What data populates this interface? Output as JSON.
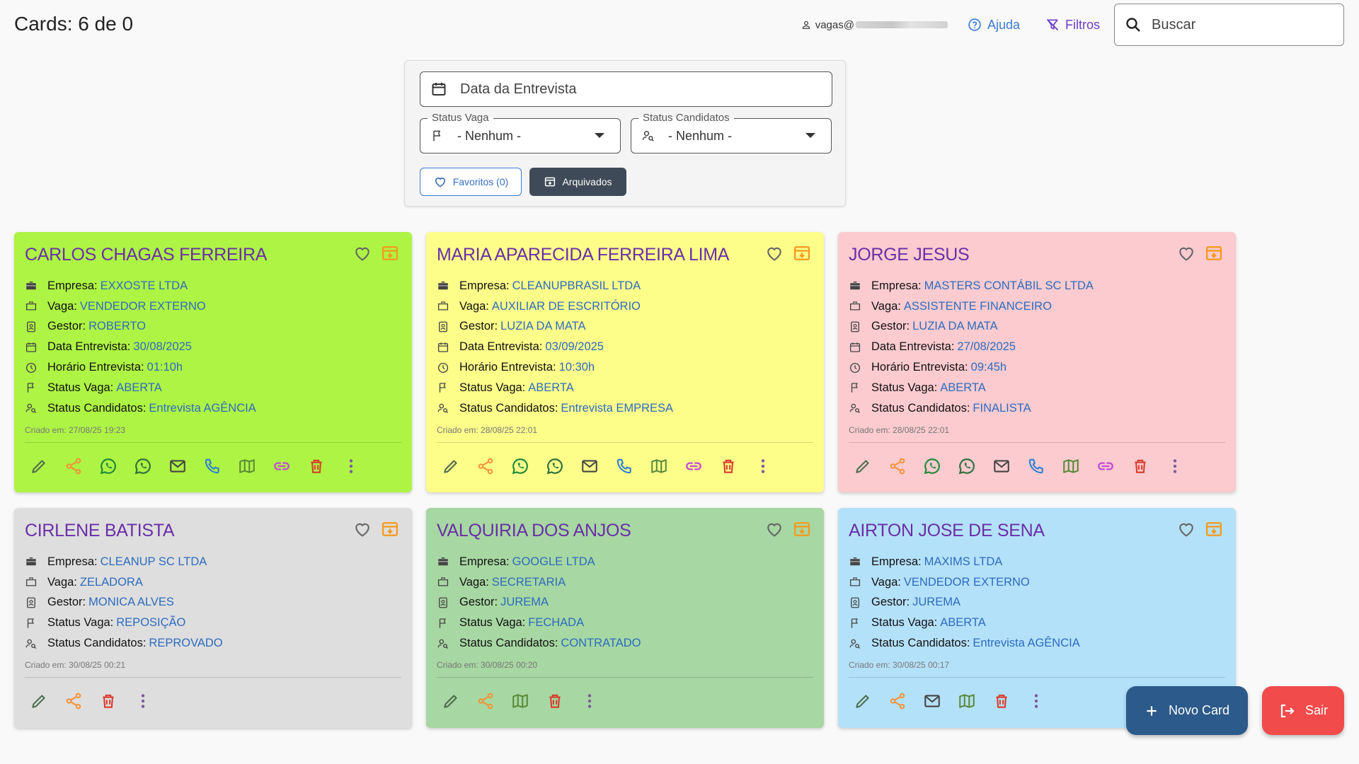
{
  "header": {
    "title": "Cards: 6 de 0",
    "user_email": "vagas@",
    "help_label": "Ajuda",
    "filters_label": "Filtros",
    "search_placeholder": "Buscar"
  },
  "filters": {
    "date_placeholder": "Data da Entrevista",
    "status_vaga": {
      "label": "Status Vaga",
      "value": "- Nenhum -"
    },
    "status_candidatos": {
      "label": "Status Candidatos",
      "value": "- Nenhum -"
    },
    "favorites_label": "Favoritos (0)",
    "archived_label": "Arquivados"
  },
  "labels": {
    "empresa": "Empresa:",
    "vaga": "Vaga:",
    "gestor": "Gestor:",
    "data_entrevista": "Data Entrevista:",
    "horario_entrevista": "Horário Entrevista:",
    "status_vaga": "Status Vaga:",
    "status_candidatos": "Status Candidatos:"
  },
  "cards": [
    {
      "name": "CARLOS CHAGAS FERREIRA",
      "color": "#aef444",
      "empresa": "EXXOSTE LTDA",
      "vaga": "VENDEDOR EXTERNO",
      "gestor": "ROBERTO",
      "data_entrevista": "30/08/2025",
      "horario_entrevista": "01:10h",
      "status_vaga": "ABERTA",
      "status_candidatos": "Entrevista AGÊNCIA",
      "created": "Criado em: 27/08/25 19:23"
    },
    {
      "name": "MARIA APARECIDA FERREIRA LIMA",
      "color": "#fdfd8a",
      "empresa": "CLEANUPBRASIL LTDA",
      "vaga": "AUXILIAR DE ESCRITÓRIO",
      "gestor": "LUZIA DA MATA",
      "data_entrevista": "03/09/2025",
      "horario_entrevista": "10:30h",
      "status_vaga": "ABERTA",
      "status_candidatos": "Entrevista EMPRESA",
      "created": "Criado em: 28/08/25 22:01"
    },
    {
      "name": "JORGE JESUS",
      "color": "#fbcbcf",
      "empresa": "MASTERS CONTÁBIL SC LTDA",
      "vaga": "ASSISTENTE FINANCEIRO",
      "gestor": "LUZIA DA MATA",
      "data_entrevista": "27/08/2025",
      "horario_entrevista": "09:45h",
      "status_vaga": "ABERTA",
      "status_candidatos": "FINALISTA",
      "created": "Criado em: 28/08/25 22:01"
    },
    {
      "name": "CIRLENE BATISTA",
      "color": "#dedede",
      "empresa": "CLEANUP SC LTDA",
      "vaga": "ZELADORA",
      "gestor": "MONICA ALVES",
      "status_vaga": "REPOSIÇÃO",
      "status_candidatos": "REPROVADO",
      "created": "Criado em: 30/08/25 00:21"
    },
    {
      "name": "VALQUIRIA DOS ANJOS",
      "color": "#a7d7a2",
      "empresa": "GOOGLE LTDA",
      "vaga": "SECRETARIA",
      "gestor": "JUREMA",
      "status_vaga": "FECHADA",
      "status_candidatos": "CONTRATADO",
      "created": "Criado em: 30/08/25 00:20"
    },
    {
      "name": "AIRTON JOSE DE SENA",
      "color": "#b4e1fa",
      "empresa": "MAXIMS LTDA",
      "vaga": "VENDEDOR EXTERNO",
      "gestor": "JUREMA",
      "status_vaga": "ABERTA",
      "status_candidatos": "Entrevista AGÊNCIA",
      "created": "Criado em: 30/08/25 00:17"
    }
  ],
  "fab": {
    "new_card": "Novo Card",
    "exit": "Sair"
  },
  "colors": {
    "name_purple": "#6a2fa8",
    "value_blue": "#2d6bbf",
    "new_card_bg": "#2c5a8a",
    "exit_bg": "#f24b4b"
  }
}
